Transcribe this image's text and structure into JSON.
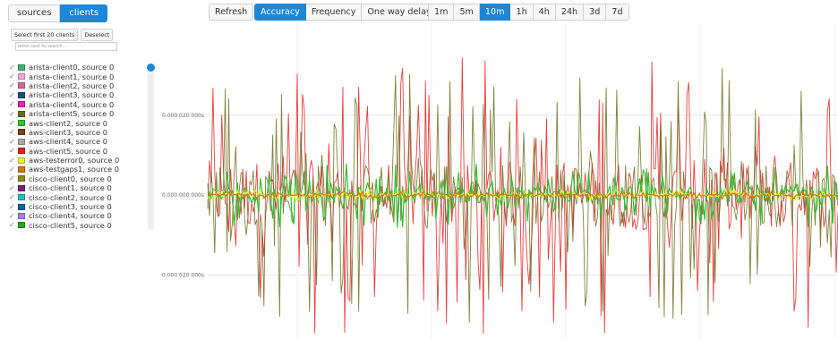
{
  "sidebar": {
    "tabs": [
      {
        "label": "sources",
        "active": false
      },
      {
        "label": "clients",
        "active": true
      }
    ],
    "select_first_label": "Select first 20 clients",
    "deselect_label": "Deselect",
    "filter_placeholder": "enter text to search ...",
    "items": [
      {
        "label": "arista-client0, source 0",
        "color": "#3cb371"
      },
      {
        "label": "arista-client1, source 0",
        "color": "#f4a7cf"
      },
      {
        "label": "arista-client2, source 0",
        "color": "#d36b98"
      },
      {
        "label": "arista-client3, source 0",
        "color": "#1f4e79"
      },
      {
        "label": "arista-client4, source 0",
        "color": "#e820b4"
      },
      {
        "label": "arista-client5, source 0",
        "color": "#6b6b1e"
      },
      {
        "label": "aws-client2, source 0",
        "color": "#2ec12e"
      },
      {
        "label": "aws-client3, source 0",
        "color": "#7a3f1c"
      },
      {
        "label": "aws-client4, source 0",
        "color": "#a9a9a9"
      },
      {
        "label": "aws-client5, source 0",
        "color": "#e02020"
      },
      {
        "label": "aws-testerror0, source 0",
        "color": "#f0f020"
      },
      {
        "label": "aws-testgaps1, source 0",
        "color": "#c87a14"
      },
      {
        "label": "cisco-client0, source 0",
        "color": "#8b8b1a"
      },
      {
        "label": "cisco-client1, source 0",
        "color": "#7a1f7a"
      },
      {
        "label": "cisco-client2, source 0",
        "color": "#20c0c0"
      },
      {
        "label": "cisco-client3, source 0",
        "color": "#1f5fa0"
      },
      {
        "label": "cisco-client4, source 0",
        "color": "#a080e0"
      },
      {
        "label": "cisco-client5, source 0",
        "color": "#22aa22"
      }
    ]
  },
  "toolbar": {
    "refresh": "Refresh",
    "modes": [
      {
        "label": "Accuracy",
        "active": true
      },
      {
        "label": "Frequency",
        "active": false
      },
      {
        "label": "One way delay",
        "active": false
      }
    ],
    "ranges": [
      {
        "label": "1m",
        "active": false
      },
      {
        "label": "5m",
        "active": false
      },
      {
        "label": "10m",
        "active": true
      },
      {
        "label": "1h",
        "active": false
      },
      {
        "label": "4h",
        "active": false
      },
      {
        "label": "24h",
        "active": false
      },
      {
        "label": "3d",
        "active": false
      },
      {
        "label": "7d",
        "active": false
      }
    ]
  },
  "chart_data": {
    "type": "line",
    "title": "",
    "xlabel": "",
    "ylabel": "",
    "yticks": [
      "0.000 020 000s",
      "0.000 000 000s",
      "-0.000 020 000s"
    ],
    "ytick_values": [
      2e-05,
      0,
      -2e-05
    ],
    "ylim": [
      -3.6e-05,
      4.3e-05
    ],
    "grid": true,
    "series": [
      {
        "color": "#e02020",
        "amplitude": 3.5e-05
      },
      {
        "color": "#6b6b1e",
        "amplitude": 3.2e-05
      },
      {
        "color": "#2ec12e",
        "amplitude": 8e-06
      },
      {
        "color": "#f0f020",
        "amplitude": 1.5e-06
      },
      {
        "color": "#c87a14",
        "amplitude": 1e-06
      }
    ]
  }
}
